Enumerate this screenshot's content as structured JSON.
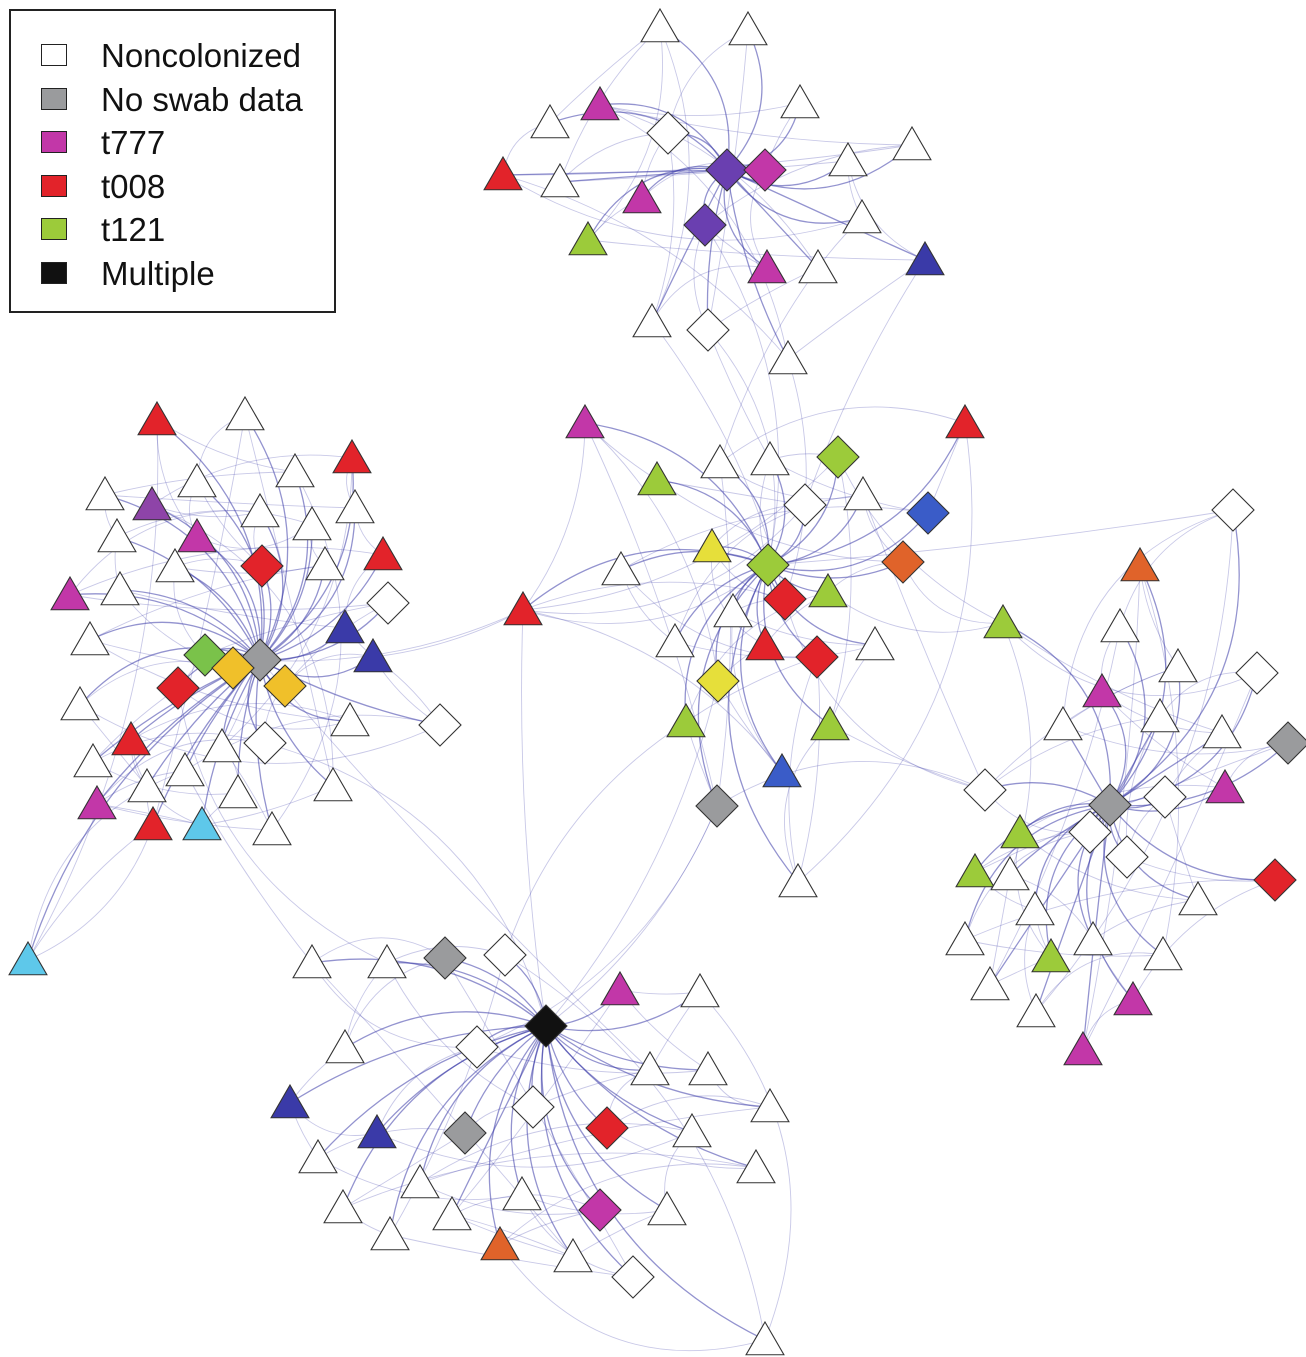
{
  "legend": {
    "items": [
      {
        "label": "Noncolonized",
        "color": "#ffffff"
      },
      {
        "label": "No swab data",
        "color": "#9a9b9d"
      },
      {
        "label": "t777",
        "color": "#c237a8"
      },
      {
        "label": "t008",
        "color": "#e2232a"
      },
      {
        "label": "t121",
        "color": "#9ccb3a"
      },
      {
        "label": "Multiple",
        "color": "#111111"
      }
    ]
  },
  "node_colors": {
    "white": "#ffffff",
    "gray": "#9a9b9d",
    "magenta": "#c237a8",
    "red": "#e2232a",
    "lime": "#9ccb3a",
    "black": "#111111",
    "navy": "#3a3aa8",
    "purple": "#6a3fb0",
    "violet": "#8e44a8",
    "blue": "#3a5cc8",
    "skyblue": "#5ec8ea",
    "orange": "#e0632a",
    "yellow": "#e6df3a",
    "gold": "#f0c02a",
    "green": "#7ac24a"
  },
  "edge_color": "#3a3aa8",
  "nodes": [
    {
      "id": "A0",
      "shape": "triangle",
      "color": "white"
    },
    {
      "id": "A1",
      "shape": "triangle",
      "color": "white"
    },
    {
      "id": "A2",
      "shape": "triangle",
      "color": "magenta"
    },
    {
      "id": "A3",
      "shape": "triangle",
      "color": "white"
    },
    {
      "id": "A4",
      "shape": "diamond",
      "color": "white"
    },
    {
      "id": "A5",
      "shape": "triangle",
      "color": "white"
    },
    {
      "id": "A6",
      "shape": "triangle",
      "color": "red"
    },
    {
      "id": "A7",
      "shape": "triangle",
      "color": "white"
    },
    {
      "id": "A8",
      "shape": "diamond",
      "color": "purple"
    },
    {
      "id": "A9",
      "shape": "diamond",
      "color": "magenta"
    },
    {
      "id": "A10",
      "shape": "triangle",
      "color": "white"
    },
    {
      "id": "A11",
      "shape": "triangle",
      "color": "white"
    },
    {
      "id": "A12",
      "shape": "triangle",
      "color": "magenta"
    },
    {
      "id": "A13",
      "shape": "diamond",
      "color": "purple"
    },
    {
      "id": "A14",
      "shape": "triangle",
      "color": "white"
    },
    {
      "id": "A15",
      "shape": "triangle",
      "color": "lime"
    },
    {
      "id": "A16",
      "shape": "triangle",
      "color": "magenta"
    },
    {
      "id": "A17",
      "shape": "triangle",
      "color": "white"
    },
    {
      "id": "A18",
      "shape": "triangle",
      "color": "navy"
    },
    {
      "id": "A19",
      "shape": "triangle",
      "color": "white"
    },
    {
      "id": "A20",
      "shape": "diamond",
      "color": "white"
    },
    {
      "id": "A21",
      "shape": "triangle",
      "color": "white"
    },
    {
      "id": "B0",
      "shape": "triangle",
      "color": "red"
    },
    {
      "id": "B1",
      "shape": "triangle",
      "color": "white"
    },
    {
      "id": "B2",
      "shape": "triangle",
      "color": "red"
    },
    {
      "id": "B3",
      "shape": "triangle",
      "color": "white"
    },
    {
      "id": "B4",
      "shape": "triangle",
      "color": "white"
    },
    {
      "id": "B5",
      "shape": "triangle",
      "color": "violet"
    },
    {
      "id": "B6",
      "shape": "triangle",
      "color": "white"
    },
    {
      "id": "B7",
      "shape": "triangle",
      "color": "magenta"
    },
    {
      "id": "B8",
      "shape": "triangle",
      "color": "white"
    },
    {
      "id": "B9",
      "shape": "triangle",
      "color": "white"
    },
    {
      "id": "B10",
      "shape": "triangle",
      "color": "white"
    },
    {
      "id": "B11",
      "shape": "diamond",
      "color": "red"
    },
    {
      "id": "B12",
      "shape": "triangle",
      "color": "red"
    },
    {
      "id": "B13",
      "shape": "triangle",
      "color": "white"
    },
    {
      "id": "B14",
      "shape": "triangle",
      "color": "white"
    },
    {
      "id": "B15",
      "shape": "triangle",
      "color": "magenta"
    },
    {
      "id": "B16",
      "shape": "triangle",
      "color": "white"
    },
    {
      "id": "B17",
      "shape": "triangle",
      "color": "white"
    },
    {
      "id": "B18",
      "shape": "diamond",
      "color": "white"
    },
    {
      "id": "B19",
      "shape": "triangle",
      "color": "navy"
    },
    {
      "id": "B20",
      "shape": "triangle",
      "color": "white"
    },
    {
      "id": "B21",
      "shape": "diamond",
      "color": "green"
    },
    {
      "id": "B22",
      "shape": "diamond",
      "color": "gray"
    },
    {
      "id": "B23",
      "shape": "triangle",
      "color": "navy"
    },
    {
      "id": "B24",
      "shape": "diamond",
      "color": "gold"
    },
    {
      "id": "B25",
      "shape": "diamond",
      "color": "red"
    },
    {
      "id": "B26",
      "shape": "diamond",
      "color": "gold"
    },
    {
      "id": "B27",
      "shape": "triangle",
      "color": "white"
    },
    {
      "id": "B28",
      "shape": "triangle",
      "color": "white"
    },
    {
      "id": "B29",
      "shape": "diamond",
      "color": "white"
    },
    {
      "id": "B30",
      "shape": "diamond",
      "color": "white"
    },
    {
      "id": "B31",
      "shape": "triangle",
      "color": "red"
    },
    {
      "id": "B32",
      "shape": "triangle",
      "color": "white"
    },
    {
      "id": "B33",
      "shape": "triangle",
      "color": "white"
    },
    {
      "id": "B34",
      "shape": "triangle",
      "color": "white"
    },
    {
      "id": "B35",
      "shape": "triangle",
      "color": "white"
    },
    {
      "id": "B36",
      "shape": "triangle",
      "color": "magenta"
    },
    {
      "id": "B37",
      "shape": "triangle",
      "color": "red"
    },
    {
      "id": "B38",
      "shape": "triangle",
      "color": "skyblue"
    },
    {
      "id": "B39",
      "shape": "triangle",
      "color": "white"
    },
    {
      "id": "B40",
      "shape": "triangle",
      "color": "skyblue"
    },
    {
      "id": "B41",
      "shape": "triangle",
      "color": "white"
    },
    {
      "id": "B42",
      "shape": "triangle",
      "color": "white"
    },
    {
      "id": "C0",
      "shape": "triangle",
      "color": "red"
    },
    {
      "id": "C1",
      "shape": "triangle",
      "color": "magenta"
    },
    {
      "id": "C2",
      "shape": "triangle",
      "color": "red"
    },
    {
      "id": "C3",
      "shape": "diamond",
      "color": "lime"
    },
    {
      "id": "C4",
      "shape": "triangle",
      "color": "lime"
    },
    {
      "id": "C5",
      "shape": "triangle",
      "color": "white"
    },
    {
      "id": "C6",
      "shape": "triangle",
      "color": "white"
    },
    {
      "id": "C7",
      "shape": "diamond",
      "color": "white"
    },
    {
      "id": "C8",
      "shape": "triangle",
      "color": "white"
    },
    {
      "id": "C9",
      "shape": "diamond",
      "color": "blue"
    },
    {
      "id": "C10",
      "shape": "triangle",
      "color": "yellow"
    },
    {
      "id": "C11",
      "shape": "diamond",
      "color": "lime"
    },
    {
      "id": "C12",
      "shape": "diamond",
      "color": "orange"
    },
    {
      "id": "C13",
      "shape": "triangle",
      "color": "white"
    },
    {
      "id": "C14",
      "shape": "diamond",
      "color": "red"
    },
    {
      "id": "C15",
      "shape": "triangle",
      "color": "lime"
    },
    {
      "id": "C16",
      "shape": "triangle",
      "color": "white"
    },
    {
      "id": "C17",
      "shape": "triangle",
      "color": "white"
    },
    {
      "id": "C18",
      "shape": "triangle",
      "color": "red"
    },
    {
      "id": "C19",
      "shape": "diamond",
      "color": "red"
    },
    {
      "id": "C20",
      "shape": "triangle",
      "color": "white"
    },
    {
      "id": "C21",
      "shape": "diamond",
      "color": "yellow"
    },
    {
      "id": "C22",
      "shape": "triangle",
      "color": "lime"
    },
    {
      "id": "C23",
      "shape": "triangle",
      "color": "lime"
    },
    {
      "id": "C24",
      "shape": "triangle",
      "color": "blue"
    },
    {
      "id": "C25",
      "shape": "diamond",
      "color": "gray"
    },
    {
      "id": "C26",
      "shape": "triangle",
      "color": "white"
    },
    {
      "id": "D0",
      "shape": "diamond",
      "color": "white"
    },
    {
      "id": "D1",
      "shape": "triangle",
      "color": "orange"
    },
    {
      "id": "D2",
      "shape": "triangle",
      "color": "lime"
    },
    {
      "id": "D3",
      "shape": "triangle",
      "color": "white"
    },
    {
      "id": "D4",
      "shape": "triangle",
      "color": "white"
    },
    {
      "id": "D5",
      "shape": "diamond",
      "color": "white"
    },
    {
      "id": "D6",
      "shape": "triangle",
      "color": "magenta"
    },
    {
      "id": "D7",
      "shape": "triangle",
      "color": "white"
    },
    {
      "id": "D8",
      "shape": "triangle",
      "color": "white"
    },
    {
      "id": "D9",
      "shape": "triangle",
      "color": "white"
    },
    {
      "id": "D10",
      "shape": "diamond",
      "color": "gray"
    },
    {
      "id": "D11",
      "shape": "diamond",
      "color": "white"
    },
    {
      "id": "D12",
      "shape": "diamond",
      "color": "gray"
    },
    {
      "id": "D13",
      "shape": "diamond",
      "color": "white"
    },
    {
      "id": "D14",
      "shape": "triangle",
      "color": "magenta"
    },
    {
      "id": "D15",
      "shape": "diamond",
      "color": "white"
    },
    {
      "id": "D16",
      "shape": "diamond",
      "color": "white"
    },
    {
      "id": "D17",
      "shape": "triangle",
      "color": "lime"
    },
    {
      "id": "D18",
      "shape": "triangle",
      "color": "lime"
    },
    {
      "id": "D19",
      "shape": "diamond",
      "color": "red"
    },
    {
      "id": "D20",
      "shape": "triangle",
      "color": "white"
    },
    {
      "id": "D21",
      "shape": "triangle",
      "color": "white"
    },
    {
      "id": "D22",
      "shape": "triangle",
      "color": "white"
    },
    {
      "id": "D23",
      "shape": "triangle",
      "color": "white"
    },
    {
      "id": "D24",
      "shape": "triangle",
      "color": "lime"
    },
    {
      "id": "D25",
      "shape": "triangle",
      "color": "white"
    },
    {
      "id": "D26",
      "shape": "triangle",
      "color": "magenta"
    },
    {
      "id": "D27",
      "shape": "triangle",
      "color": "white"
    },
    {
      "id": "D28",
      "shape": "triangle",
      "color": "white"
    },
    {
      "id": "D29",
      "shape": "triangle",
      "color": "magenta"
    },
    {
      "id": "D30",
      "shape": "triangle",
      "color": "white"
    },
    {
      "id": "E0",
      "shape": "diamond",
      "color": "gray"
    },
    {
      "id": "E1",
      "shape": "diamond",
      "color": "white"
    },
    {
      "id": "E2",
      "shape": "triangle",
      "color": "magenta"
    },
    {
      "id": "E3",
      "shape": "triangle",
      "color": "white"
    },
    {
      "id": "E4",
      "shape": "triangle",
      "color": "white"
    },
    {
      "id": "E5",
      "shape": "triangle",
      "color": "white"
    },
    {
      "id": "E6",
      "shape": "diamond",
      "color": "black"
    },
    {
      "id": "E7",
      "shape": "diamond",
      "color": "white"
    },
    {
      "id": "E8",
      "shape": "triangle",
      "color": "white"
    },
    {
      "id": "E9",
      "shape": "triangle",
      "color": "white"
    },
    {
      "id": "E10",
      "shape": "triangle",
      "color": "white"
    },
    {
      "id": "E11",
      "shape": "triangle",
      "color": "navy"
    },
    {
      "id": "E12",
      "shape": "diamond",
      "color": "white"
    },
    {
      "id": "E13",
      "shape": "triangle",
      "color": "white"
    },
    {
      "id": "E14",
      "shape": "triangle",
      "color": "navy"
    },
    {
      "id": "E15",
      "shape": "diamond",
      "color": "gray"
    },
    {
      "id": "E16",
      "shape": "diamond",
      "color": "red"
    },
    {
      "id": "E17",
      "shape": "triangle",
      "color": "white"
    },
    {
      "id": "E18",
      "shape": "triangle",
      "color": "white"
    },
    {
      "id": "E19",
      "shape": "triangle",
      "color": "white"
    },
    {
      "id": "E20",
      "shape": "triangle",
      "color": "white"
    },
    {
      "id": "E21",
      "shape": "triangle",
      "color": "white"
    },
    {
      "id": "E22",
      "shape": "triangle",
      "color": "white"
    },
    {
      "id": "E23",
      "shape": "diamond",
      "color": "magenta"
    },
    {
      "id": "E24",
      "shape": "triangle",
      "color": "white"
    },
    {
      "id": "E25",
      "shape": "triangle",
      "color": "white"
    },
    {
      "id": "E26",
      "shape": "triangle",
      "color": "orange"
    },
    {
      "id": "E27",
      "shape": "triangle",
      "color": "white"
    },
    {
      "id": "E28",
      "shape": "diamond",
      "color": "white"
    },
    {
      "id": "E29",
      "shape": "triangle",
      "color": "white"
    },
    {
      "id": "E30",
      "shape": "triangle",
      "color": "white"
    }
  ],
  "clusters": [
    {
      "hub": "A8",
      "members": [
        "A0",
        "A1",
        "A2",
        "A3",
        "A4",
        "A5",
        "A6",
        "A7",
        "A9",
        "A10",
        "A11",
        "A12",
        "A13",
        "A14",
        "A15",
        "A16",
        "A17",
        "A18",
        "A19",
        "A20",
        "A21"
      ]
    },
    {
      "hub": "B22",
      "members": [
        "B0",
        "B1",
        "B2",
        "B3",
        "B4",
        "B5",
        "B6",
        "B7",
        "B8",
        "B9",
        "B10",
        "B11",
        "B12",
        "B13",
        "B14",
        "B15",
        "B16",
        "B17",
        "B18",
        "B19",
        "B20",
        "B21",
        "B23",
        "B24",
        "B25",
        "B26",
        "B27",
        "B28",
        "B29",
        "B30",
        "B31",
        "B32",
        "B33",
        "B34",
        "B35",
        "B36",
        "B37",
        "B38",
        "B39",
        "B40",
        "B41",
        "B42"
      ]
    },
    {
      "hub": "C11",
      "members": [
        "C0",
        "C1",
        "C2",
        "C3",
        "C4",
        "C5",
        "C6",
        "C7",
        "C8",
        "C9",
        "C10",
        "C12",
        "C13",
        "C14",
        "C15",
        "C16",
        "C17",
        "C18",
        "C19",
        "C20",
        "C21",
        "C22",
        "C23",
        "C24",
        "C25",
        "C26"
      ]
    },
    {
      "hub": "D12",
      "members": [
        "D0",
        "D1",
        "D2",
        "D3",
        "D4",
        "D5",
        "D6",
        "D7",
        "D8",
        "D9",
        "D10",
        "D11",
        "D13",
        "D14",
        "D15",
        "D16",
        "D17",
        "D18",
        "D19",
        "D20",
        "D21",
        "D22",
        "D23",
        "D24",
        "D25",
        "D26",
        "D27",
        "D28",
        "D29",
        "D30"
      ]
    },
    {
      "hub": "E6",
      "members": [
        "E0",
        "E1",
        "E2",
        "E3",
        "E4",
        "E5",
        "E7",
        "E8",
        "E9",
        "E10",
        "E11",
        "E12",
        "E13",
        "E14",
        "E15",
        "E16",
        "E17",
        "E18",
        "E19",
        "E20",
        "E21",
        "E22",
        "E23",
        "E24",
        "E25",
        "E26",
        "E27",
        "E28",
        "E29",
        "E30"
      ]
    }
  ],
  "extra_edges": [
    [
      "B22",
      "C0"
    ],
    [
      "C0",
      "C11"
    ],
    [
      "C0",
      "C1"
    ],
    [
      "C0",
      "E6"
    ],
    [
      "C14",
      "C0"
    ],
    [
      "B23",
      "C0"
    ],
    [
      "A19",
      "C14"
    ],
    [
      "A20",
      "C11"
    ],
    [
      "A21",
      "C14"
    ],
    [
      "A13",
      "C11"
    ],
    [
      "A20",
      "C6"
    ],
    [
      "A18",
      "C7"
    ],
    [
      "C11",
      "D0"
    ],
    [
      "C12",
      "D2"
    ],
    [
      "C15",
      "D2"
    ],
    [
      "C14",
      "D11"
    ],
    [
      "D11",
      "C25"
    ],
    [
      "C8",
      "D11"
    ],
    [
      "E6",
      "C21"
    ],
    [
      "E6",
      "C25"
    ],
    [
      "E6",
      "B29"
    ],
    [
      "B33",
      "E3"
    ],
    [
      "B22",
      "E9"
    ],
    [
      "C26",
      "C19"
    ],
    [
      "B37",
      "B40"
    ],
    [
      "B36",
      "B38"
    ],
    [
      "E27",
      "E30"
    ],
    [
      "B23",
      "B30"
    ],
    [
      "E7",
      "C25"
    ],
    [
      "B22",
      "B42"
    ],
    [
      "A17",
      "C5"
    ],
    [
      "B25",
      "E4"
    ],
    [
      "C23",
      "D11"
    ],
    [
      "C3",
      "D2"
    ],
    [
      "C22",
      "E1"
    ]
  ]
}
